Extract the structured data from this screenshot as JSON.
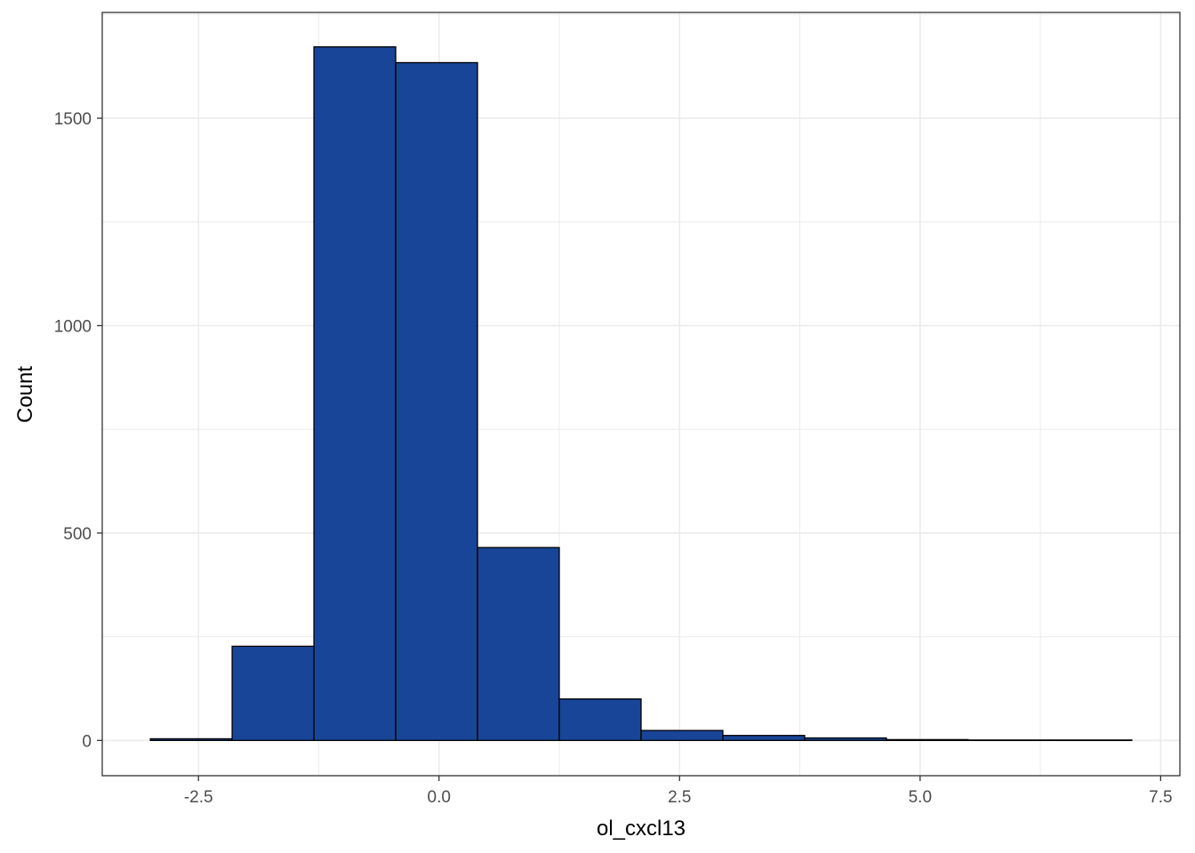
{
  "chart_data": {
    "type": "bar",
    "subtype": "histogram",
    "title": "",
    "xlabel": "ol_cxcl13",
    "ylabel": "Count",
    "bin_edges": [
      -3.0,
      -2.15,
      -1.3,
      -0.45,
      0.4,
      1.25,
      2.1,
      2.95,
      3.8,
      4.65,
      5.5,
      6.35,
      7.2
    ],
    "values": [
      4,
      227,
      1672,
      1634,
      465,
      100,
      24,
      12,
      6,
      2,
      1,
      1
    ],
    "xlim": [
      -3.5,
      7.7
    ],
    "ylim": [
      -85,
      1755
    ],
    "x_ticks": [
      -2.5,
      0.0,
      2.5,
      5.0,
      7.5
    ],
    "x_tick_labels": [
      "-2.5",
      "0.0",
      "2.5",
      "5.0",
      "7.5"
    ],
    "y_ticks": [
      0,
      500,
      1000,
      1500
    ],
    "y_tick_labels": [
      "0",
      "500",
      "1000",
      "1500"
    ],
    "grid": true,
    "legend": "none",
    "colors": {
      "bar_fill": "#184597",
      "bar_stroke": "#000000",
      "grid": "#ebebeb",
      "panel_border": "#333333"
    }
  }
}
